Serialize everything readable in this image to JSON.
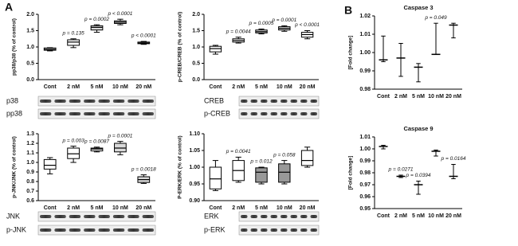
{
  "panels": [
    "A",
    "B"
  ],
  "chart_data": [
    {
      "type": "box",
      "ylabel": "pp38/p38 (% of control)",
      "categories": [
        "Cont",
        "2 nM",
        "5 nM",
        "10 nM",
        "20 nM"
      ],
      "boxes": [
        {
          "min": 0.88,
          "q1": 0.9,
          "median": 0.93,
          "q3": 0.97,
          "max": 0.98
        },
        {
          "min": 0.98,
          "q1": 1.05,
          "median": 1.15,
          "q3": 1.22,
          "max": 1.25
        },
        {
          "min": 1.45,
          "q1": 1.52,
          "median": 1.6,
          "q3": 1.65,
          "max": 1.68
        },
        {
          "min": 1.68,
          "q1": 1.72,
          "median": 1.76,
          "q3": 1.8,
          "max": 1.85
        },
        {
          "min": 1.08,
          "q1": 1.1,
          "median": 1.12,
          "q3": 1.15,
          "max": 1.17
        }
      ],
      "box_colors": [
        "#ffffff",
        "#ffffff",
        "#d9d9d9",
        "#d9d9d9",
        "#ffffff"
      ],
      "p_values": [
        null,
        "p = 0.135",
        "p = 0.0002",
        "p < 0.0001",
        "p < 0.0001"
      ],
      "ylim": [
        0,
        2
      ],
      "yticks": [
        {
          "value": 0,
          "label": "0.0"
        },
        0.5,
        {
          "value": 1,
          "label": "1.0"
        },
        1.5,
        {
          "value": 2,
          "label": "2.0"
        }
      ],
      "blot_labels": [
        "p38",
        "pp38"
      ]
    },
    {
      "type": "box",
      "ylabel": "p-CREB/CREB (% of control)",
      "categories": [
        "Cont",
        "2 nM",
        "5 nM",
        "10 nM",
        "20 nM"
      ],
      "boxes": [
        {
          "min": 0.78,
          "q1": 0.85,
          "median": 0.95,
          "q3": 1.02,
          "max": 1.05
        },
        {
          "min": 1.12,
          "q1": 1.15,
          "median": 1.2,
          "q3": 1.25,
          "max": 1.3
        },
        {
          "min": 1.4,
          "q1": 1.43,
          "median": 1.47,
          "q3": 1.52,
          "max": 1.55
        },
        {
          "min": 1.48,
          "q1": 1.52,
          "median": 1.57,
          "q3": 1.62,
          "max": 1.65
        },
        {
          "min": 1.25,
          "q1": 1.3,
          "median": 1.38,
          "q3": 1.45,
          "max": 1.5
        }
      ],
      "box_colors": [
        "#ffffff",
        "#ffffff",
        "#d9d9d9",
        "#d9d9d9",
        "#ffffff"
      ],
      "p_values": [
        null,
        "p = 0.0044",
        "p = 0.0005",
        "p = 0.0001",
        "p < 0.0001"
      ],
      "ylim": [
        0,
        2
      ],
      "yticks": [
        {
          "value": 0,
          "label": "0.0"
        },
        0.5,
        {
          "value": 1,
          "label": "1.0"
        },
        1.5,
        {
          "value": 2,
          "label": "2.0"
        }
      ],
      "blot_labels": [
        "CREB",
        "p-CREB"
      ]
    },
    {
      "type": "box",
      "ylabel": "p-JNK/JNK (% of control)",
      "categories": [
        "Cont",
        "2 nM",
        "5 nM",
        "10 nM",
        "20 nM"
      ],
      "boxes": [
        {
          "min": 0.88,
          "q1": 0.93,
          "median": 0.97,
          "q3": 1.03,
          "max": 1.05
        },
        {
          "min": 1.0,
          "q1": 1.04,
          "median": 1.09,
          "q3": 1.15,
          "max": 1.17
        },
        {
          "min": 1.11,
          "q1": 1.12,
          "median": 1.14,
          "q3": 1.15,
          "max": 1.16
        },
        {
          "min": 1.08,
          "q1": 1.11,
          "median": 1.15,
          "q3": 1.2,
          "max": 1.22
        },
        {
          "min": 0.78,
          "q1": 0.79,
          "median": 0.82,
          "q3": 0.85,
          "max": 0.87
        }
      ],
      "box_colors": [
        "#ffffff",
        "#ffffff",
        "#ffffff",
        "#d9d9d9",
        "#d9d9d9"
      ],
      "p_values": [
        null,
        "p = 0.003",
        "p = 0.0087",
        "p = 0.0001",
        "p = 0.0018"
      ],
      "ylim": [
        0.6,
        1.3
      ],
      "yticks": [
        0.6,
        0.7,
        0.8,
        0.9,
        {
          "value": 1,
          "label": "1.0"
        },
        1.1,
        1.2,
        1.3
      ],
      "blot_labels": [
        "JNK",
        "p-JNK"
      ]
    },
    {
      "type": "box",
      "ylabel": "P-ERK/ERK (% of control)",
      "categories": [
        "Cont",
        "2 nM",
        "5 nM",
        "10 nM",
        "20 nM"
      ],
      "boxes": [
        {
          "min": 0.93,
          "q1": 0.935,
          "median": 0.965,
          "q3": 1.0,
          "max": 1.02
        },
        {
          "min": 0.955,
          "q1": 0.96,
          "median": 0.99,
          "q3": 1.02,
          "max": 1.03
        },
        {
          "min": 0.95,
          "q1": 0.955,
          "median": 0.985,
          "q3": 0.998,
          "max": 1.0
        },
        {
          "min": 0.95,
          "q1": 0.955,
          "median": 0.985,
          "q3": 1.01,
          "max": 1.02
        },
        {
          "min": 1.0,
          "q1": 1.005,
          "median": 1.02,
          "q3": 1.05,
          "max": 1.06
        }
      ],
      "box_colors": [
        "#ffffff",
        "#ffffff",
        "#999999",
        "#999999",
        "#ffffff"
      ],
      "p_values": [
        null,
        "p = 0.0041",
        "p = 0.012",
        "p = 0.058",
        null
      ],
      "ylim": [
        0.9,
        1.1
      ],
      "yticks": [
        {
          "value": 0.9,
          "label": "0.90"
        },
        0.95,
        {
          "value": 1,
          "label": "1.00"
        },
        1.05,
        {
          "value": 1.1,
          "label": "1.10"
        }
      ],
      "blot_labels": [
        "ERK",
        "p-ERK"
      ]
    },
    {
      "type": "box",
      "title": "Caspase 3",
      "ylabel": "[Fold change]",
      "categories": [
        "Cont",
        "2 nM",
        "5 nM",
        "10 nM",
        "20 nM"
      ],
      "boxes": [
        {
          "min": 0.995,
          "median": 0.996,
          "max": 1.009
        },
        {
          "min": 0.987,
          "median": 0.997,
          "max": 1.005
        },
        {
          "min": 0.984,
          "median": 0.992,
          "max": 0.994
        },
        {
          "min": 0.999,
          "median": 0.999,
          "max": 1.016
        },
        {
          "min": 1.008,
          "median": 1.015,
          "max": 1.016
        }
      ],
      "p_values": [
        null,
        null,
        null,
        "p = 0.049",
        null
      ],
      "ylim": [
        0.98,
        1.02
      ],
      "yticks": [
        0.98,
        0.99,
        {
          "value": 1,
          "label": "1.00"
        },
        1.01,
        1.02
      ]
    },
    {
      "type": "box",
      "title": "Caspase 9",
      "ylabel": "[Fold change]",
      "categories": [
        "Cont",
        "2 nM",
        "5 nM",
        "10 nM",
        "20 nM"
      ],
      "boxes": [
        {
          "min": 1.0,
          "median": 1.002,
          "max": 1.003
        },
        {
          "min": 0.976,
          "median": 0.977,
          "max": 0.978
        },
        {
          "min": 0.962,
          "median": 0.97,
          "max": 0.973
        },
        {
          "min": 0.994,
          "median": 0.998,
          "max": 0.999
        },
        {
          "min": 0.975,
          "median": 0.977,
          "max": 0.987
        }
      ],
      "p_values": [
        null,
        "p = 0.0271",
        "p = 0.0394",
        null,
        "p = 0.0164"
      ],
      "ylim": [
        0.95,
        1.01
      ],
      "yticks": [
        0.95,
        0.96,
        0.97,
        0.98,
        0.99,
        {
          "value": 1,
          "label": "1.00"
        },
        1.01
      ]
    }
  ]
}
